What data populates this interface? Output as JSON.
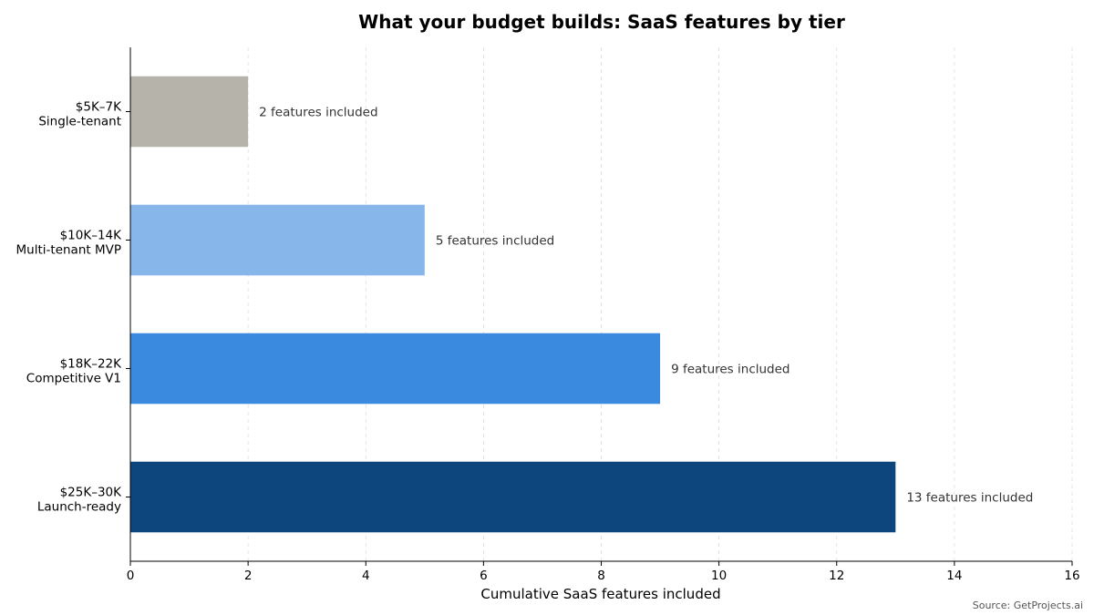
{
  "chart_data": {
    "type": "bar",
    "orientation": "horizontal",
    "title": "What your budget builds: SaaS features by tier",
    "xlabel": "Cumulative SaaS features included",
    "ylabel": "",
    "xlim": [
      0,
      16
    ],
    "x_ticks": [
      0,
      2,
      4,
      6,
      8,
      10,
      12,
      14,
      16
    ],
    "grid": "vertical dashed",
    "categories": [
      {
        "price": "$5K–7K",
        "tier": "Single-tenant",
        "value": 2,
        "label": "2 features included",
        "color": "#b5b3aa"
      },
      {
        "price": "$10K–14K",
        "tier": "Multi-tenant MVP",
        "value": 5,
        "label": "5 features included",
        "color": "#87b6ea"
      },
      {
        "price": "$18K–22K",
        "tier": "Competitive V1",
        "value": 9,
        "label": "9 features included",
        "color": "#3a8ae0"
      },
      {
        "price": "$25K–30K",
        "tier": "Launch-ready",
        "value": 13,
        "label": "13 features included",
        "color": "#0d467c"
      }
    ],
    "source": "Source: GetProjects.ai"
  }
}
